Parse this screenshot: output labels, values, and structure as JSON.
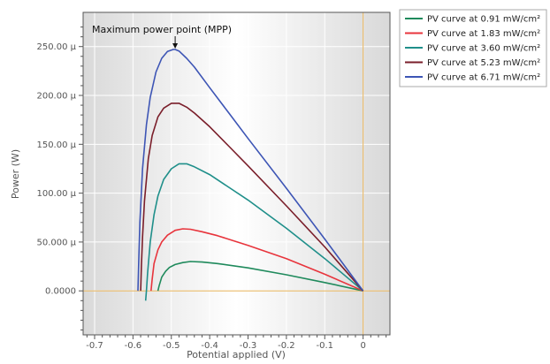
{
  "chart_data": {
    "type": "line",
    "title": "",
    "xlabel": "Potential applied (V)",
    "ylabel": "Power (W)",
    "xlim": [
      -0.73,
      0.07
    ],
    "ylim": [
      -4.5e-05,
      0.000285
    ],
    "x_ticks": [
      {
        "value": -0.7,
        "label": "-0.7"
      },
      {
        "value": -0.6,
        "label": "-0.6"
      },
      {
        "value": -0.5,
        "label": "-0.5"
      },
      {
        "value": -0.4,
        "label": "-0.4"
      },
      {
        "value": -0.3,
        "label": "-0.3"
      },
      {
        "value": -0.2,
        "label": "-0.2"
      },
      {
        "value": -0.1,
        "label": "-0.1"
      },
      {
        "value": 0.0,
        "label": "0"
      }
    ],
    "y_ticks": [
      {
        "value": 0.0,
        "label": "0.0000"
      },
      {
        "value": 5e-05,
        "label": "50.000 μ"
      },
      {
        "value": 0.0001,
        "label": "100.00 μ"
      },
      {
        "value": 0.00015,
        "label": "150.00 μ"
      },
      {
        "value": 0.0002,
        "label": "200.00 μ"
      },
      {
        "value": 0.00025,
        "label": "250.00 μ"
      }
    ],
    "grid": true,
    "legend_position": "outside-right-top",
    "annotation": {
      "text": "Maximum power point (MPP)",
      "x": -0.49,
      "y": 0.000247
    },
    "reference_lines": {
      "x": 0.0,
      "y": 0.0,
      "color": "#e8b45a"
    },
    "series": [
      {
        "name": "PV curve at 0.91 mW/cm²",
        "color": "#1f8a5c",
        "x": [
          -0.535,
          -0.532,
          -0.525,
          -0.515,
          -0.505,
          -0.49,
          -0.47,
          -0.45,
          -0.42,
          -0.38,
          -0.3,
          -0.2,
          -0.1,
          0.0
        ],
        "y": [
          0.0,
          5e-06,
          1.4e-05,
          2e-05,
          2.4e-05,
          2.7e-05,
          2.9e-05,
          3e-05,
          2.95e-05,
          2.8e-05,
          2.35e-05,
          1.65e-05,
          8.5e-06,
          0.0
        ]
      },
      {
        "name": "PV curve at 1.83 mW/cm²",
        "color": "#e8343c",
        "x": [
          -0.553,
          -0.55,
          -0.545,
          -0.535,
          -0.525,
          -0.51,
          -0.49,
          -0.47,
          -0.45,
          -0.42,
          -0.38,
          -0.3,
          -0.2,
          -0.1,
          0.0
        ],
        "y": [
          0.0,
          1.2e-05,
          2.8e-05,
          4.2e-05,
          5e-05,
          5.7e-05,
          6.2e-05,
          6.35e-05,
          6.3e-05,
          6.05e-05,
          5.65e-05,
          4.65e-05,
          3.3e-05,
          1.7e-05,
          0.0
        ]
      },
      {
        "name": "PV curve at 3.60 mW/cm²",
        "color": "#1f8f8a",
        "x": [
          -0.567,
          -0.565,
          -0.562,
          -0.555,
          -0.545,
          -0.535,
          -0.52,
          -0.5,
          -0.48,
          -0.46,
          -0.44,
          -0.4,
          -0.35,
          -0.3,
          -0.2,
          -0.1,
          0.0
        ],
        "y": [
          -1e-05,
          0.0,
          1.8e-05,
          5e-05,
          7.8e-05,
          9.7e-05,
          0.000114,
          0.000125,
          0.00013,
          0.00013,
          0.000127,
          0.000119,
          0.000106,
          9.3e-05,
          6.4e-05,
          3.3e-05,
          0.0
        ]
      },
      {
        "name": "PV curve at 5.23 mW/cm²",
        "color": "#7a1e2a",
        "x": [
          -0.58,
          -0.578,
          -0.575,
          -0.57,
          -0.56,
          -0.55,
          -0.535,
          -0.52,
          -0.5,
          -0.48,
          -0.46,
          -0.44,
          -0.4,
          -0.35,
          -0.3,
          -0.2,
          -0.1,
          0.0
        ],
        "y": [
          0.0,
          2.5e-05,
          5.5e-05,
          9.2e-05,
          0.000135,
          0.000159,
          0.000178,
          0.000187,
          0.000192,
          0.000192,
          0.000188,
          0.000182,
          0.000168,
          0.000148,
          0.000128,
          8.7e-05,
          4.5e-05,
          0.0
        ]
      },
      {
        "name": "PV curve at 6.71 mW/cm²",
        "color": "#3d55b5",
        "x": [
          -0.587,
          -0.585,
          -0.582,
          -0.575,
          -0.565,
          -0.555,
          -0.54,
          -0.525,
          -0.51,
          -0.495,
          -0.49,
          -0.48,
          -0.46,
          -0.44,
          -0.4,
          -0.35,
          -0.3,
          -0.2,
          -0.1,
          0.0
        ],
        "y": [
          0.0,
          3e-05,
          7e-05,
          0.000125,
          0.00017,
          0.000198,
          0.000224,
          0.000238,
          0.000245,
          0.000247,
          0.000247,
          0.0002455,
          0.000238,
          0.000229,
          0.000208,
          0.000182,
          0.000156,
          0.000105,
          5.3e-05,
          0.0
        ]
      }
    ]
  }
}
